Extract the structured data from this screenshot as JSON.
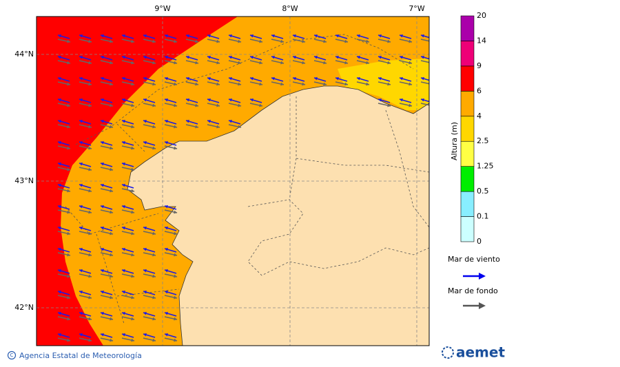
{
  "map": {
    "lon_labels": [
      "9°W",
      "8°W",
      "7°W"
    ],
    "lat_labels": [
      "44°N",
      "43°N",
      "42°N"
    ]
  },
  "colorbar": {
    "title": "Altura (m)",
    "levels": [
      0,
      0.1,
      0.5,
      1.25,
      2.5,
      4,
      6,
      9,
      14,
      20
    ],
    "colors": [
      "#ccffff",
      "#88eeff",
      "#00ee00",
      "#ffff44",
      "#ffd700",
      "#ffaa00",
      "#ff0000",
      "#ee0077",
      "#aa00aa"
    ]
  },
  "legend": {
    "wind_sea": "Mar de viento",
    "swell": "Mar de fondo"
  },
  "footer": {
    "credit": "Agencia Estatal de Meteorología",
    "logo": "aemet"
  }
}
